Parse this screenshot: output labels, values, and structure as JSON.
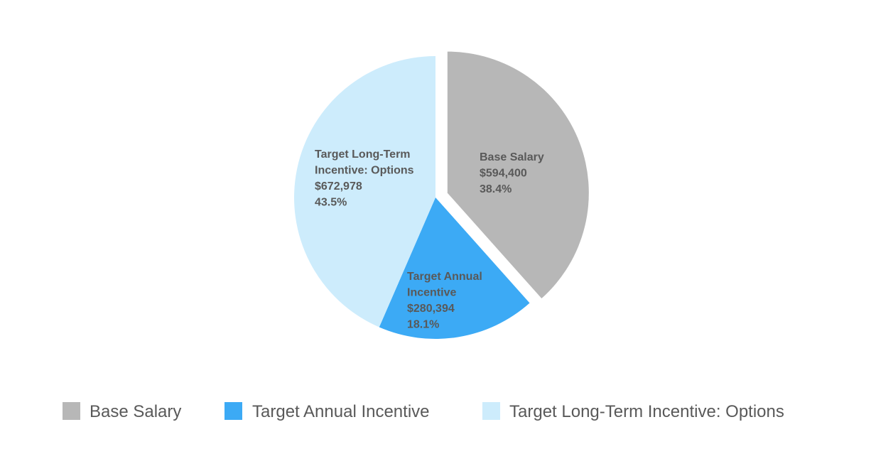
{
  "chart_data": {
    "type": "pie",
    "series": [
      {
        "name": "Base Salary",
        "value": 594400,
        "value_label": "$594,400",
        "percent_label": "38.4%",
        "label_lines": [
          "Base Salary"
        ],
        "color": "#b7b7b7",
        "exploded": true
      },
      {
        "name": "Target Annual Incentive",
        "value": 280394,
        "value_label": "$280,394",
        "percent_label": "18.1%",
        "label_lines": [
          "Target Annual",
          "Incentive"
        ],
        "color": "#3caaf5",
        "exploded": false
      },
      {
        "name": "Target Long-Term Incentive: Options",
        "value": 672978,
        "value_label": "$672,978",
        "percent_label": "43.5%",
        "label_lines": [
          "Target Long-Term",
          "Incentive: Options"
        ],
        "color": "#cdecfc",
        "exploded": false
      }
    ],
    "start_angle_deg": 0,
    "direction": "clockwise",
    "legend_position": "bottom"
  }
}
